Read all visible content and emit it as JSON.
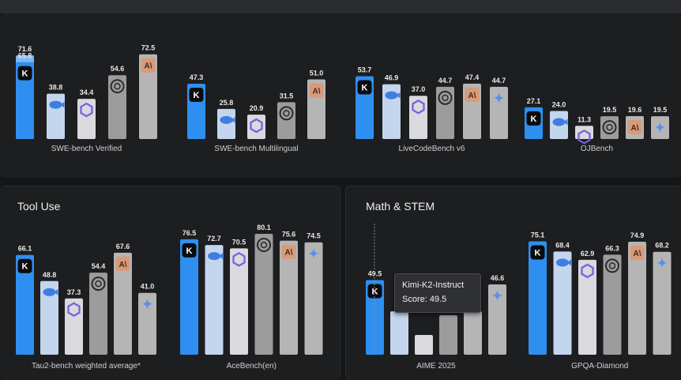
{
  "sections": {
    "tool_use": "Tool Use",
    "math_stem": "Math & STEM"
  },
  "models": [
    {
      "id": "kimi",
      "color": "#2f8ff0",
      "icon": "kimi-k-icon"
    },
    {
      "id": "deepseek",
      "color": "#c4d5ee",
      "icon": "whale-icon"
    },
    {
      "id": "qwen",
      "color": "#d9d9de",
      "icon": "qwen-icon"
    },
    {
      "id": "openai",
      "color": "#9c9c9c",
      "icon": "openai-icon"
    },
    {
      "id": "anthropic",
      "color": "#b5b5b5",
      "icon": "anthropic-icon"
    },
    {
      "id": "gemini",
      "color": "#b5b5b5",
      "icon": "gemini-star-icon"
    }
  ],
  "tooltip": {
    "name": "Kimi-K2-Instruct",
    "score": "Score: 49.5"
  },
  "chart_data": [
    {
      "type": "bar",
      "xlabel": "SWE-bench Verified",
      "series": [
        "kimi",
        "deepseek",
        "qwen",
        "openai",
        "anthropic"
      ],
      "values": [
        65.8,
        38.8,
        34.4,
        54.6,
        72.5
      ],
      "extra": {
        "kimi": 71.6
      }
    },
    {
      "type": "bar",
      "xlabel": "SWE-bench Multilingual",
      "series": [
        "kimi",
        "deepseek",
        "qwen",
        "openai",
        "anthropic"
      ],
      "values": [
        47.3,
        25.8,
        20.9,
        31.5,
        51.0
      ]
    },
    {
      "type": "bar",
      "xlabel": "LiveCodeBench v6",
      "series": [
        "kimi",
        "deepseek",
        "qwen",
        "openai",
        "anthropic",
        "gemini"
      ],
      "values": [
        53.7,
        46.9,
        37.0,
        44.7,
        47.4,
        44.7
      ]
    },
    {
      "type": "bar",
      "xlabel": "OJBench",
      "series": [
        "kimi",
        "deepseek",
        "qwen",
        "openai",
        "anthropic",
        "gemini"
      ],
      "values": [
        27.1,
        24.0,
        11.3,
        19.5,
        19.6,
        19.5
      ]
    },
    {
      "type": "bar",
      "xlabel": "Tau2-bench weighted average*",
      "series": [
        "kimi",
        "deepseek",
        "qwen",
        "openai",
        "anthropic",
        "gemini"
      ],
      "values": [
        66.1,
        48.8,
        37.3,
        54.4,
        67.6,
        41.0
      ]
    },
    {
      "type": "bar",
      "xlabel": "AceBench(en)",
      "series": [
        "kimi",
        "deepseek",
        "qwen",
        "openai",
        "anthropic",
        "gemini"
      ],
      "values": [
        76.5,
        72.7,
        70.5,
        80.1,
        75.6,
        74.5
      ]
    },
    {
      "type": "bar",
      "xlabel": "AIME 2025",
      "series": [
        "kimi",
        "deepseek",
        "qwen",
        "openai",
        "anthropic",
        "gemini"
      ],
      "values": [
        49.5,
        null,
        null,
        null,
        null,
        46.6
      ]
    },
    {
      "type": "bar",
      "xlabel": "GPQA-Diamond",
      "series": [
        "kimi",
        "deepseek",
        "qwen",
        "openai",
        "anthropic",
        "gemini"
      ],
      "values": [
        75.1,
        68.4,
        62.9,
        66.3,
        74.9,
        68.2
      ]
    }
  ]
}
